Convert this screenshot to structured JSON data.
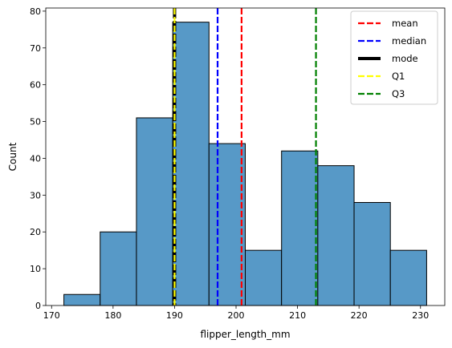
{
  "chart_data": {
    "type": "bar",
    "xlabel": "flipper_length_mm",
    "ylabel": "Count",
    "xlim": [
      169.05,
      233.95
    ],
    "ylim": [
      0,
      80.85
    ],
    "bin_edges": [
      172,
      177.9,
      183.8,
      189.7,
      195.6,
      201.5,
      207.4,
      213.3,
      219.2,
      225.1,
      231
    ],
    "values": [
      3,
      20,
      51,
      77,
      44,
      15,
      42,
      38,
      28,
      15
    ],
    "x_ticks": [
      170,
      180,
      190,
      200,
      210,
      220,
      230
    ],
    "y_ticks": [
      0,
      10,
      20,
      30,
      40,
      50,
      60,
      70,
      80
    ],
    "grid": false,
    "legend_position": "top-right",
    "bar_color": "#5799c7",
    "bar_edge_color": "#000000",
    "reference_lines": [
      {
        "name": "mean",
        "x": 200.9,
        "color": "#ff0000",
        "style": "dashed"
      },
      {
        "name": "median",
        "x": 197,
        "color": "#0000ff",
        "style": "dashed"
      },
      {
        "name": "mode",
        "x": 190,
        "color": "#000000",
        "style": "dashed-bold"
      },
      {
        "name": "Q1",
        "x": 190,
        "color": "#ffff00",
        "style": "dashed"
      },
      {
        "name": "Q3",
        "x": 213,
        "color": "#008000",
        "style": "dashed"
      }
    ]
  }
}
